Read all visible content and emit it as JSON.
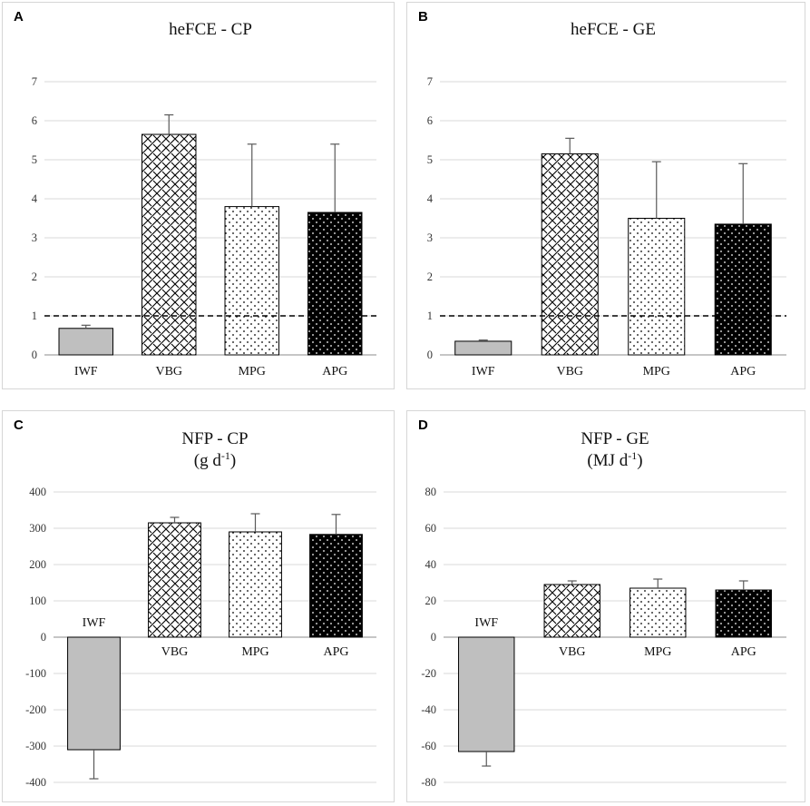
{
  "colors": {
    "grid": "#d9d9d9",
    "bar_stroke": "#000000",
    "iwf_fill": "#bfbfbf",
    "dashed_line": "#000000",
    "error_bar": "#595959"
  },
  "chart_data": [
    {
      "letter": "A",
      "type": "bar",
      "title": "heFCE - CP",
      "subtitle": "",
      "categories": [
        "IWF",
        "VBG",
        "MPG",
        "APG"
      ],
      "values": [
        0.68,
        5.65,
        3.8,
        3.65
      ],
      "errors": [
        0.08,
        0.5,
        1.6,
        1.75
      ],
      "patterns": [
        "solid-gray",
        "crosshatch",
        "dots",
        "black-dots"
      ],
      "yticks": [
        "0",
        "1",
        "2",
        "3",
        "4",
        "5",
        "6",
        "7"
      ],
      "ylim": [
        0,
        7
      ],
      "reference_line": 1
    },
    {
      "letter": "B",
      "type": "bar",
      "title": "heFCE - GE",
      "subtitle": "",
      "categories": [
        "IWF",
        "VBG",
        "MPG",
        "APG"
      ],
      "values": [
        0.35,
        5.15,
        3.5,
        3.35
      ],
      "errors": [
        0.03,
        0.4,
        1.45,
        1.55
      ],
      "patterns": [
        "solid-gray",
        "crosshatch",
        "dots",
        "black-dots"
      ],
      "yticks": [
        "0",
        "1",
        "2",
        "3",
        "4",
        "5",
        "6",
        "7"
      ],
      "ylim": [
        0,
        7
      ],
      "reference_line": 1
    },
    {
      "letter": "C",
      "type": "bar",
      "title": "NFP - CP",
      "subtitle": "(g d-1)",
      "categories": [
        "IWF",
        "VBG",
        "MPG",
        "APG"
      ],
      "values": [
        -310,
        315,
        290,
        283
      ],
      "errors": [
        80,
        15,
        50,
        55
      ],
      "patterns": [
        "solid-gray",
        "crosshatch",
        "dots",
        "black-dots"
      ],
      "yticks": [
        "-400",
        "-300",
        "-200",
        "-100",
        "0",
        "100",
        "200",
        "300",
        "400"
      ],
      "ylim": [
        -400,
        400
      ]
    },
    {
      "letter": "D",
      "type": "bar",
      "title": "NFP - GE",
      "subtitle": "(MJ d-1)",
      "categories": [
        "IWF",
        "VBG",
        "MPG",
        "APG"
      ],
      "values": [
        -63,
        29,
        27,
        26
      ],
      "errors": [
        8,
        2,
        5,
        5
      ],
      "patterns": [
        "solid-gray",
        "crosshatch",
        "dots",
        "black-dots"
      ],
      "yticks": [
        "-80",
        "-60",
        "-40",
        "-20",
        "0",
        "20",
        "40",
        "60",
        "80"
      ],
      "ylim": [
        -80,
        80
      ]
    }
  ]
}
